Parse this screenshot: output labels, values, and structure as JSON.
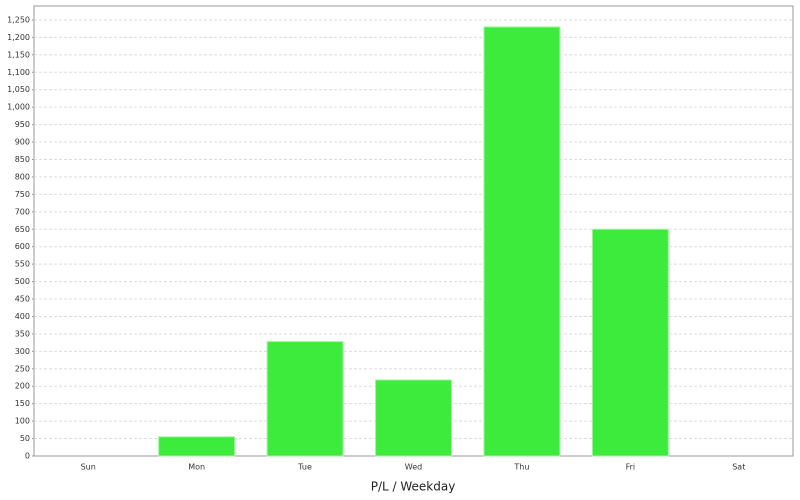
{
  "chart_data": {
    "type": "bar",
    "x_label": "P/L / Weekday",
    "categories": [
      "Sun",
      "Mon",
      "Tue",
      "Wed",
      "Thu",
      "Fri",
      "Sat"
    ],
    "values": [
      0,
      55,
      328,
      218,
      1230,
      650,
      0
    ],
    "color": "#3deb3d",
    "ylim": [
      0,
      1290
    ],
    "yticks": [
      0,
      50,
      100,
      150,
      200,
      250,
      300,
      350,
      400,
      450,
      500,
      550,
      600,
      650,
      700,
      750,
      800,
      850,
      900,
      950,
      {
        "value": 1000,
        "label": "1,000"
      },
      {
        "value": 1050,
        "label": "1,050"
      },
      {
        "value": 1100,
        "label": "1,100"
      },
      {
        "value": 1150,
        "label": "1,150"
      },
      {
        "value": 1200,
        "label": "1,200"
      },
      {
        "value": 1250,
        "label": "1,250"
      }
    ],
    "grid": true
  }
}
